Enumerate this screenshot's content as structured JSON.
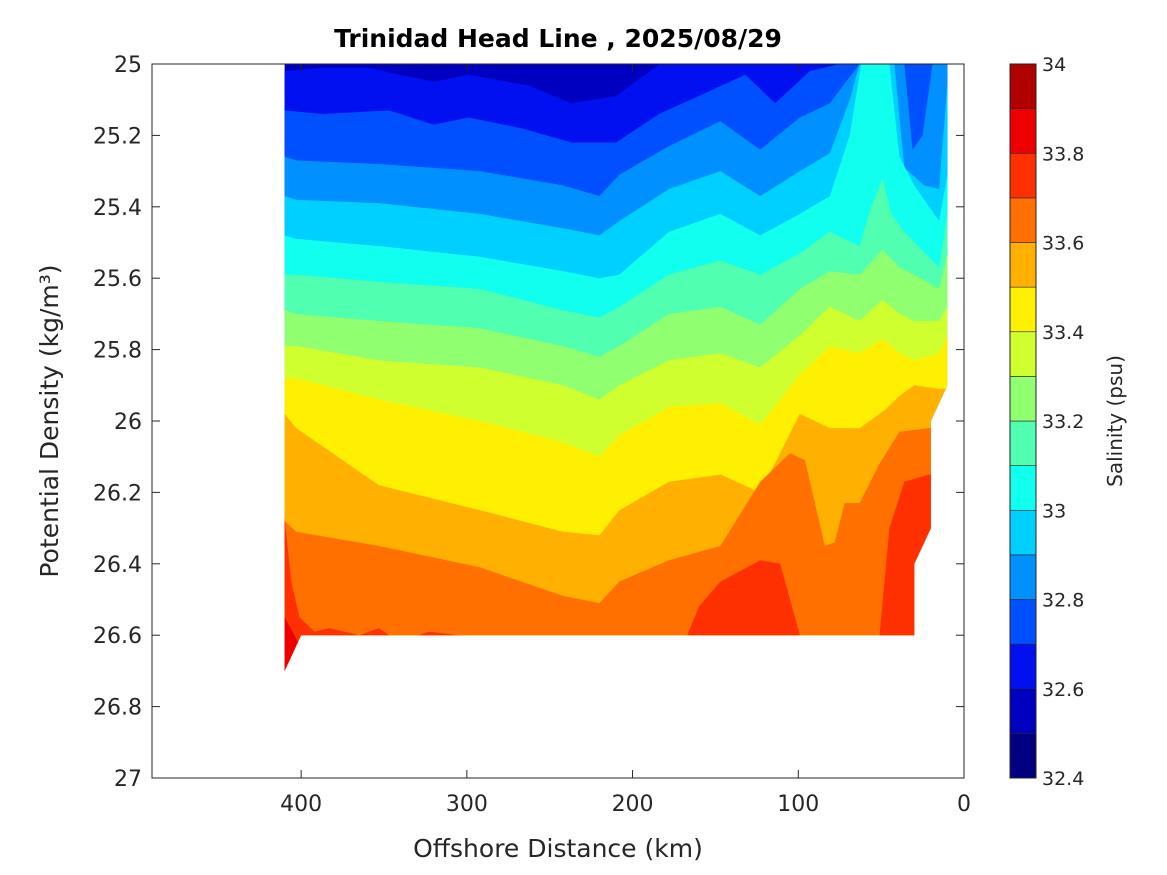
{
  "chart_data": {
    "type": "contourf",
    "title": "Trinidad Head Line , 2025/08/29",
    "xlabel": "Offshore Distance (km)",
    "ylabel": "Potential Density (kg/m³)",
    "xlim": [
      490,
      0
    ],
    "ylim": [
      27,
      25
    ],
    "x_ticks": [
      400,
      300,
      200,
      100,
      0
    ],
    "x_tick_labels": [
      "400",
      "300",
      "200",
      "100",
      "0"
    ],
    "y_ticks": [
      25,
      25.2,
      25.4,
      25.6,
      25.8,
      26,
      26.2,
      26.4,
      26.6,
      26.8,
      27
    ],
    "y_tick_labels": [
      "25",
      "25.2",
      "25.4",
      "25.6",
      "25.8",
      "26",
      "26.2",
      "26.4",
      "26.6",
      "26.8",
      "27"
    ],
    "colorbar": {
      "label": "Salinity (psu)",
      "range": [
        32.4,
        34
      ],
      "ticks": [
        32.4,
        32.6,
        32.8,
        33,
        33.2,
        33.4,
        33.6,
        33.8,
        34
      ],
      "tick_labels": [
        "32.4",
        "32.6",
        "32.8",
        "33",
        "33.2",
        "33.4",
        "33.6",
        "33.8",
        "34"
      ],
      "levels": [
        32.4,
        32.5,
        32.6,
        32.7,
        32.8,
        32.9,
        33.0,
        33.1,
        33.2,
        33.3,
        33.4,
        33.5,
        33.6,
        33.7,
        33.8,
        33.9,
        34.0
      ],
      "colors": [
        "#000080",
        "#0000C0",
        "#0010F0",
        "#0050FF",
        "#0090FF",
        "#00D0FF",
        "#10FFEF",
        "#50FFAF",
        "#90FF70",
        "#D0FF30",
        "#FFEF00",
        "#FFB000",
        "#FF7000",
        "#FF3000",
        "#EF0000",
        "#B00000"
      ]
    },
    "data_domain": [
      [
        410,
        25
      ],
      [
        10,
        25
      ],
      [
        10,
        25.9
      ],
      [
        20,
        26.0
      ],
      [
        20,
        26.3
      ],
      [
        30,
        26.4
      ],
      [
        30,
        26.6
      ],
      [
        400,
        26.6
      ],
      [
        410,
        26.7
      ]
    ],
    "base_band": 32.5,
    "isolines": [
      {
        "level": 32.6,
        "points": [
          [
            410,
            25.02
          ],
          [
            387,
            25.01
          ],
          [
            360,
            25.01
          ],
          [
            320,
            25.05
          ],
          [
            299,
            25.03
          ],
          [
            263,
            25.06
          ],
          [
            237,
            25.11
          ],
          [
            210,
            25.09
          ],
          [
            184,
            25.0
          ],
          [
            10,
            25.0
          ]
        ]
      },
      {
        "level": 32.7,
        "points": [
          [
            410,
            25.13
          ],
          [
            387,
            25.14
          ],
          [
            347,
            25.13
          ],
          [
            320,
            25.17
          ],
          [
            299,
            25.15
          ],
          [
            267,
            25.18
          ],
          [
            237,
            25.22
          ],
          [
            210,
            25.22
          ],
          [
            184,
            25.14
          ],
          [
            146,
            25.06
          ],
          [
            132,
            25.03
          ],
          [
            114,
            25.11
          ],
          [
            93,
            25.02
          ],
          [
            75,
            25.0
          ],
          [
            10,
            25.0
          ]
        ]
      },
      {
        "level": 32.8,
        "points": [
          [
            410,
            25.26
          ],
          [
            403,
            25.27
          ],
          [
            353,
            25.28
          ],
          [
            292,
            25.3
          ],
          [
            242,
            25.34
          ],
          [
            220,
            25.37
          ],
          [
            208,
            25.31
          ],
          [
            178,
            25.23
          ],
          [
            147,
            25.16
          ],
          [
            123,
            25.24
          ],
          [
            99,
            25.15
          ],
          [
            81,
            25.11
          ],
          [
            63,
            25.0
          ],
          [
            36,
            25.0
          ],
          [
            31,
            25.24
          ],
          [
            25,
            25.2
          ],
          [
            19,
            25.0
          ],
          [
            10,
            25.0
          ]
        ]
      },
      {
        "level": 32.9,
        "points": [
          [
            410,
            25.37
          ],
          [
            403,
            25.38
          ],
          [
            353,
            25.39
          ],
          [
            292,
            25.42
          ],
          [
            242,
            25.46
          ],
          [
            220,
            25.48
          ],
          [
            208,
            25.44
          ],
          [
            178,
            25.35
          ],
          [
            147,
            25.3
          ],
          [
            123,
            25.37
          ],
          [
            99,
            25.3
          ],
          [
            81,
            25.25
          ],
          [
            69,
            25.1
          ],
          [
            63,
            25.0
          ],
          [
            42,
            25.0
          ],
          [
            36,
            25.29
          ],
          [
            24,
            25.34
          ],
          [
            15,
            25.35
          ],
          [
            10,
            25.05
          ]
        ]
      },
      {
        "level": 33.0,
        "points": [
          [
            410,
            25.48
          ],
          [
            403,
            25.49
          ],
          [
            353,
            25.51
          ],
          [
            292,
            25.54
          ],
          [
            242,
            25.58
          ],
          [
            220,
            25.6
          ],
          [
            208,
            25.59
          ],
          [
            178,
            25.47
          ],
          [
            147,
            25.42
          ],
          [
            123,
            25.48
          ],
          [
            99,
            25.42
          ],
          [
            81,
            25.37
          ],
          [
            69,
            25.2
          ],
          [
            62,
            25.0
          ],
          [
            45,
            25.0
          ],
          [
            39,
            25.26
          ],
          [
            30,
            25.34
          ],
          [
            15,
            25.44
          ],
          [
            10,
            25.31
          ]
        ]
      },
      {
        "level": 33.1,
        "points": [
          [
            410,
            25.59
          ],
          [
            403,
            25.59
          ],
          [
            353,
            25.61
          ],
          [
            292,
            25.63
          ],
          [
            242,
            25.69
          ],
          [
            220,
            25.71
          ],
          [
            208,
            25.68
          ],
          [
            178,
            25.59
          ],
          [
            147,
            25.55
          ],
          [
            123,
            25.59
          ],
          [
            99,
            25.53
          ],
          [
            81,
            25.47
          ],
          [
            63,
            25.51
          ],
          [
            56,
            25.4
          ],
          [
            49,
            25.32
          ],
          [
            44,
            25.42
          ],
          [
            36,
            25.47
          ],
          [
            15,
            25.57
          ],
          [
            10,
            25.42
          ]
        ]
      },
      {
        "level": 33.2,
        "points": [
          [
            410,
            25.69
          ],
          [
            403,
            25.7
          ],
          [
            353,
            25.72
          ],
          [
            292,
            25.74
          ],
          [
            242,
            25.79
          ],
          [
            220,
            25.82
          ],
          [
            208,
            25.79
          ],
          [
            178,
            25.7
          ],
          [
            147,
            25.68
          ],
          [
            123,
            25.73
          ],
          [
            99,
            25.63
          ],
          [
            81,
            25.58
          ],
          [
            63,
            25.59
          ],
          [
            49,
            25.52
          ],
          [
            39,
            25.57
          ],
          [
            30,
            25.59
          ],
          [
            15,
            25.63
          ],
          [
            10,
            25.53
          ]
        ]
      },
      {
        "level": 33.3,
        "points": [
          [
            410,
            25.79
          ],
          [
            403,
            25.79
          ],
          [
            353,
            25.83
          ],
          [
            292,
            25.85
          ],
          [
            242,
            25.9
          ],
          [
            220,
            25.94
          ],
          [
            208,
            25.9
          ],
          [
            178,
            25.83
          ],
          [
            147,
            25.81
          ],
          [
            123,
            25.85
          ],
          [
            99,
            25.76
          ],
          [
            81,
            25.68
          ],
          [
            63,
            25.72
          ],
          [
            49,
            25.66
          ],
          [
            39,
            25.7
          ],
          [
            30,
            25.72
          ],
          [
            15,
            25.72
          ],
          [
            10,
            25.68
          ]
        ]
      },
      {
        "level": 33.4,
        "points": [
          [
            410,
            25.88
          ],
          [
            403,
            25.88
          ],
          [
            353,
            25.94
          ],
          [
            292,
            26.0
          ],
          [
            242,
            26.06
          ],
          [
            220,
            26.1
          ],
          [
            208,
            26.04
          ],
          [
            178,
            25.96
          ],
          [
            147,
            25.95
          ],
          [
            123,
            26.01
          ],
          [
            99,
            25.87
          ],
          [
            81,
            25.79
          ],
          [
            63,
            25.81
          ],
          [
            49,
            25.77
          ],
          [
            39,
            25.81
          ],
          [
            30,
            25.83
          ],
          [
            15,
            25.81
          ],
          [
            10,
            25.76
          ]
        ]
      },
      {
        "level": 33.5,
        "points": [
          [
            410,
            25.98
          ],
          [
            403,
            26.02
          ],
          [
            353,
            26.18
          ],
          [
            292,
            26.25
          ],
          [
            242,
            26.31
          ],
          [
            220,
            26.32
          ],
          [
            208,
            26.25
          ],
          [
            178,
            26.17
          ],
          [
            147,
            26.15
          ],
          [
            123,
            26.2
          ],
          [
            99,
            25.98
          ],
          [
            81,
            26.02
          ],
          [
            63,
            26.02
          ],
          [
            48,
            25.97
          ],
          [
            39,
            25.93
          ],
          [
            30,
            25.9
          ],
          [
            15,
            25.91
          ],
          [
            10,
            25.91
          ]
        ]
      },
      {
        "level": 33.6,
        "points": [
          [
            410,
            26.28
          ],
          [
            403,
            26.31
          ],
          [
            353,
            26.35
          ],
          [
            292,
            26.41
          ],
          [
            242,
            26.49
          ],
          [
            220,
            26.51
          ],
          [
            208,
            26.45
          ],
          [
            178,
            26.39
          ],
          [
            147,
            26.35
          ],
          [
            123,
            26.17
          ],
          [
            105,
            26.09
          ],
          [
            96,
            26.11
          ],
          [
            90,
            26.23
          ],
          [
            84,
            26.35
          ],
          [
            78,
            26.34
          ],
          [
            72,
            26.23
          ],
          [
            63,
            26.23
          ],
          [
            51,
            26.12
          ],
          [
            39,
            26.03
          ],
          [
            21,
            26.02
          ],
          [
            10,
            26.02
          ]
        ]
      },
      {
        "level": 33.7,
        "points": [
          [
            410,
            26.27
          ],
          [
            406,
            26.45
          ],
          [
            401,
            26.55
          ],
          [
            392,
            26.59
          ],
          [
            383,
            26.58
          ],
          [
            365,
            26.6
          ],
          [
            353,
            26.58
          ],
          [
            341,
            26.62
          ],
          [
            323,
            26.59
          ],
          [
            305,
            26.6
          ],
          [
            292,
            26.62
          ],
          [
            172,
            26.62
          ],
          [
            167,
            26.6
          ],
          [
            160,
            26.52
          ],
          [
            147,
            26.45
          ],
          [
            123,
            26.39
          ],
          [
            111,
            26.4
          ],
          [
            105,
            26.5
          ],
          [
            99,
            26.6
          ],
          [
            93,
            26.65
          ],
          [
            57,
            26.65
          ],
          [
            51,
            26.6
          ],
          [
            45,
            26.3
          ],
          [
            36,
            26.17
          ],
          [
            21,
            26.15
          ],
          [
            10,
            26.15
          ]
        ]
      },
      {
        "level": 33.8,
        "points": [
          [
            410,
            26.55
          ],
          [
            404,
            26.6
          ],
          [
            398,
            26.66
          ],
          [
            10,
            26.66
          ]
        ]
      }
    ]
  }
}
